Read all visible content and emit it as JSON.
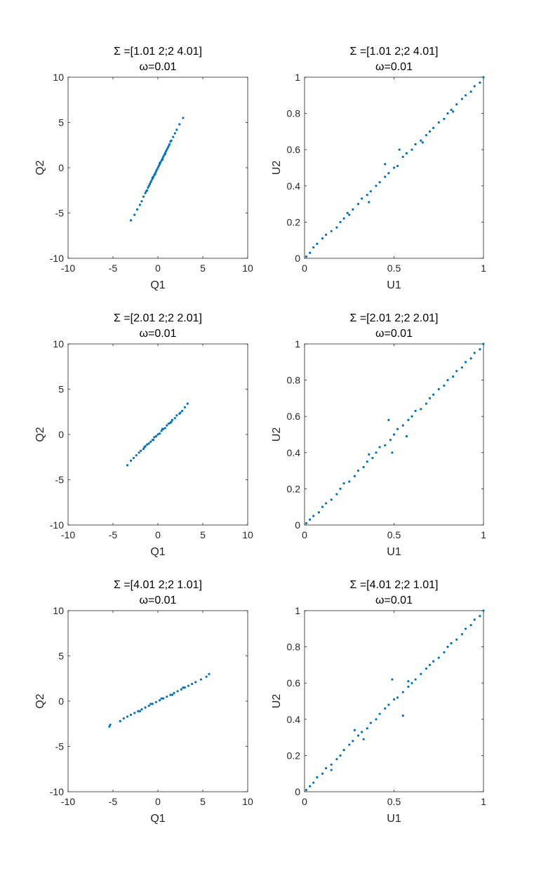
{
  "colors": {
    "marker": "#0072BD",
    "axis": "#262626",
    "background": "#ffffff"
  },
  "chart_data": [
    {
      "type": "scatter",
      "title": [
        "Σ =[1.01 2;2 4.01]",
        "ω=0.01"
      ],
      "xlabel": "Q1",
      "ylabel": "Q2",
      "xlim": [
        -10,
        10
      ],
      "ylim": [
        -10,
        10
      ],
      "xticks": [
        -10,
        -5,
        0,
        5,
        10
      ],
      "yticks": [
        -10,
        -5,
        0,
        5,
        10
      ],
      "xtick_labels": [
        "-10",
        "-5",
        "0",
        "5",
        "10"
      ],
      "ytick_labels": [
        "-10",
        "-5",
        "0",
        "5",
        "10"
      ],
      "grid": false,
      "x": [
        -3.0,
        -2.6,
        -2.3,
        -2.0,
        -1.8,
        -1.6,
        -1.4,
        -1.3,
        -1.1,
        -1.0,
        -0.9,
        -0.8,
        -0.7,
        -0.6,
        -0.5,
        -0.4,
        -0.3,
        -0.2,
        -0.1,
        0.0,
        0.1,
        0.2,
        0.3,
        0.4,
        0.5,
        0.6,
        0.7,
        0.8,
        0.9,
        1.0,
        1.1,
        1.2,
        1.3,
        1.5,
        1.7,
        1.9,
        2.1,
        2.4,
        2.8,
        -1.2,
        -0.6,
        0.2,
        0.8,
        1.4,
        -0.3,
        0.5
      ],
      "y": [
        -5.8,
        -5.2,
        -4.6,
        -4.1,
        -3.7,
        -3.2,
        -2.8,
        -2.6,
        -2.2,
        -2.0,
        -1.8,
        -1.6,
        -1.4,
        -1.2,
        -1.0,
        -0.8,
        -0.6,
        -0.4,
        -0.2,
        0.0,
        0.2,
        0.4,
        0.6,
        0.8,
        1.0,
        1.2,
        1.4,
        1.6,
        1.8,
        2.0,
        2.2,
        2.4,
        2.6,
        3.0,
        3.4,
        3.8,
        4.2,
        4.8,
        5.5,
        -2.5,
        -1.1,
        0.5,
        1.5,
        2.9,
        -0.7,
        0.9
      ]
    },
    {
      "type": "scatter",
      "title": [
        "Σ =[1.01 2;2 4.01]",
        "ω=0.01"
      ],
      "xlabel": "U1",
      "ylabel": "U2",
      "xlim": [
        0,
        1
      ],
      "ylim": [
        0,
        1
      ],
      "xticks": [
        0,
        0.5,
        1
      ],
      "yticks": [
        0,
        0.2,
        0.4,
        0.6,
        0.8,
        1
      ],
      "xtick_labels": [
        "0",
        "0.5",
        "1"
      ],
      "ytick_labels": [
        "0",
        "0.2",
        "0.4",
        "0.6",
        "0.8",
        "1"
      ],
      "grid": false,
      "x": [
        0.01,
        0.03,
        0.05,
        0.07,
        0.1,
        0.12,
        0.15,
        0.18,
        0.2,
        0.22,
        0.24,
        0.27,
        0.3,
        0.32,
        0.35,
        0.37,
        0.4,
        0.42,
        0.45,
        0.47,
        0.5,
        0.52,
        0.55,
        0.57,
        0.6,
        0.62,
        0.65,
        0.68,
        0.7,
        0.72,
        0.75,
        0.78,
        0.8,
        0.82,
        0.85,
        0.88,
        0.9,
        0.93,
        0.95,
        0.98,
        1.0,
        0.36,
        0.45,
        0.53,
        0.25,
        0.66,
        0.83
      ],
      "y": [
        0.01,
        0.03,
        0.06,
        0.08,
        0.11,
        0.13,
        0.15,
        0.17,
        0.2,
        0.22,
        0.25,
        0.27,
        0.3,
        0.33,
        0.35,
        0.37,
        0.4,
        0.42,
        0.45,
        0.47,
        0.5,
        0.51,
        0.56,
        0.58,
        0.6,
        0.63,
        0.65,
        0.68,
        0.7,
        0.72,
        0.75,
        0.77,
        0.8,
        0.82,
        0.85,
        0.88,
        0.9,
        0.92,
        0.95,
        0.97,
        1.0,
        0.31,
        0.52,
        0.6,
        0.24,
        0.64,
        0.81
      ]
    },
    {
      "type": "scatter",
      "title": [
        "Σ =[2.01 2;2 2.01]",
        "ω=0.01"
      ],
      "xlabel": "Q1",
      "ylabel": "Q2",
      "xlim": [
        -10,
        10
      ],
      "ylim": [
        -10,
        10
      ],
      "xticks": [
        -10,
        -5,
        0,
        5,
        10
      ],
      "yticks": [
        -10,
        -5,
        0,
        5,
        10
      ],
      "xtick_labels": [
        "-10",
        "-5",
        "0",
        "5",
        "10"
      ],
      "ytick_labels": [
        "-10",
        "-5",
        "0",
        "5",
        "10"
      ],
      "grid": false,
      "x": [
        -3.4,
        -3.0,
        -2.7,
        -2.4,
        -2.1,
        -1.9,
        -1.6,
        -1.4,
        -1.2,
        -1.0,
        -0.8,
        -0.6,
        -0.4,
        -0.2,
        0.0,
        0.2,
        0.4,
        0.6,
        0.8,
        1.0,
        1.2,
        1.4,
        1.6,
        1.9,
        2.1,
        2.4,
        2.7,
        3.0,
        3.3,
        -1.5,
        -0.5,
        0.5,
        1.5,
        2.5
      ],
      "y": [
        -3.4,
        -2.9,
        -2.6,
        -2.3,
        -2.0,
        -1.8,
        -1.6,
        -1.3,
        -1.1,
        -1.0,
        -0.8,
        -0.6,
        -0.3,
        -0.2,
        0.0,
        0.1,
        0.4,
        0.6,
        0.7,
        1.0,
        1.2,
        1.3,
        1.6,
        1.8,
        2.1,
        2.3,
        2.6,
        3.0,
        3.4,
        -1.4,
        -0.6,
        0.6,
        1.4,
        2.4
      ]
    },
    {
      "type": "scatter",
      "title": [
        "Σ =[2.01 2;2 2.01]",
        "ω=0.01"
      ],
      "xlabel": "U1",
      "ylabel": "U2",
      "xlim": [
        0,
        1
      ],
      "ylim": [
        0,
        1
      ],
      "xticks": [
        0,
        0.5,
        1
      ],
      "yticks": [
        0,
        0.2,
        0.4,
        0.6,
        0.8,
        1
      ],
      "xtick_labels": [
        "0",
        "0.5",
        "1"
      ],
      "ytick_labels": [
        "0",
        "0.2",
        "0.4",
        "0.6",
        "0.8",
        "1"
      ],
      "grid": false,
      "x": [
        0.01,
        0.03,
        0.05,
        0.08,
        0.1,
        0.12,
        0.15,
        0.18,
        0.2,
        0.22,
        0.25,
        0.28,
        0.3,
        0.33,
        0.35,
        0.38,
        0.4,
        0.42,
        0.45,
        0.48,
        0.5,
        0.52,
        0.55,
        0.58,
        0.6,
        0.62,
        0.65,
        0.68,
        0.7,
        0.72,
        0.75,
        0.78,
        0.8,
        0.83,
        0.85,
        0.88,
        0.9,
        0.93,
        0.95,
        0.98,
        1.0,
        0.47,
        0.49,
        0.57,
        0.36
      ],
      "y": [
        0.01,
        0.03,
        0.05,
        0.07,
        0.1,
        0.12,
        0.14,
        0.17,
        0.2,
        0.23,
        0.24,
        0.27,
        0.3,
        0.32,
        0.35,
        0.37,
        0.4,
        0.43,
        0.44,
        0.47,
        0.5,
        0.53,
        0.55,
        0.58,
        0.6,
        0.63,
        0.64,
        0.67,
        0.7,
        0.72,
        0.75,
        0.77,
        0.8,
        0.82,
        0.85,
        0.87,
        0.9,
        0.92,
        0.95,
        0.97,
        1.0,
        0.58,
        0.4,
        0.49,
        0.39
      ]
    },
    {
      "type": "scatter",
      "title": [
        "Σ =[4.01 2;2 1.01]",
        "ω=0.01"
      ],
      "xlabel": "Q1",
      "ylabel": "Q2",
      "xlim": [
        -10,
        10
      ],
      "ylim": [
        -10,
        10
      ],
      "xticks": [
        -10,
        -5,
        0,
        5,
        10
      ],
      "yticks": [
        -10,
        -5,
        0,
        5,
        10
      ],
      "xtick_labels": [
        "-10",
        "-5",
        "0",
        "5",
        "10"
      ],
      "ytick_labels": [
        "-10",
        "-5",
        "0",
        "5",
        "10"
      ],
      "grid": false,
      "x": [
        -5.4,
        -5.3,
        -4.2,
        -3.8,
        -3.4,
        -3.0,
        -2.6,
        -2.2,
        -1.8,
        -1.4,
        -1.0,
        -0.6,
        -0.2,
        0.2,
        0.6,
        1.0,
        1.4,
        1.8,
        2.2,
        2.6,
        3.0,
        3.4,
        3.8,
        4.2,
        4.8,
        5.4,
        5.7,
        -2.0,
        -0.8,
        0.4,
        1.6,
        2.8
      ],
      "y": [
        -2.8,
        -2.6,
        -2.2,
        -1.9,
        -1.7,
        -1.5,
        -1.3,
        -1.1,
        -0.9,
        -0.7,
        -0.5,
        -0.3,
        -0.1,
        0.1,
        0.3,
        0.5,
        0.7,
        0.9,
        1.1,
        1.3,
        1.5,
        1.7,
        1.9,
        2.1,
        2.4,
        2.7,
        3.0,
        -1.1,
        -0.3,
        0.3,
        0.7,
        1.5
      ]
    },
    {
      "type": "scatter",
      "title": [
        "Σ =[4.01 2;2 1.01]",
        "ω=0.01"
      ],
      "xlabel": "U1",
      "ylabel": "U2",
      "xlim": [
        0,
        1
      ],
      "ylim": [
        0,
        1
      ],
      "xticks": [
        0,
        0.5,
        1
      ],
      "yticks": [
        0,
        0.2,
        0.4,
        0.6,
        0.8,
        1
      ],
      "xtick_labels": [
        "0",
        "0.5",
        "1"
      ],
      "ytick_labels": [
        "0",
        "0.2",
        "0.4",
        "0.6",
        "0.8",
        "1"
      ],
      "grid": false,
      "x": [
        0.01,
        0.03,
        0.05,
        0.07,
        0.1,
        0.12,
        0.15,
        0.18,
        0.2,
        0.22,
        0.25,
        0.27,
        0.3,
        0.32,
        0.35,
        0.37,
        0.4,
        0.42,
        0.45,
        0.47,
        0.5,
        0.52,
        0.55,
        0.58,
        0.6,
        0.62,
        0.65,
        0.68,
        0.7,
        0.72,
        0.75,
        0.78,
        0.8,
        0.82,
        0.85,
        0.88,
        0.9,
        0.93,
        0.95,
        0.98,
        1.0,
        0.49,
        0.55,
        0.28,
        0.33,
        0.58,
        0.15
      ],
      "y": [
        0.01,
        0.03,
        0.05,
        0.08,
        0.1,
        0.13,
        0.15,
        0.18,
        0.2,
        0.23,
        0.26,
        0.28,
        0.31,
        0.33,
        0.35,
        0.38,
        0.4,
        0.43,
        0.46,
        0.48,
        0.51,
        0.52,
        0.55,
        0.58,
        0.6,
        0.62,
        0.65,
        0.68,
        0.7,
        0.72,
        0.74,
        0.77,
        0.8,
        0.82,
        0.84,
        0.87,
        0.9,
        0.92,
        0.95,
        0.97,
        1.0,
        0.62,
        0.42,
        0.34,
        0.29,
        0.61,
        0.12
      ]
    }
  ]
}
